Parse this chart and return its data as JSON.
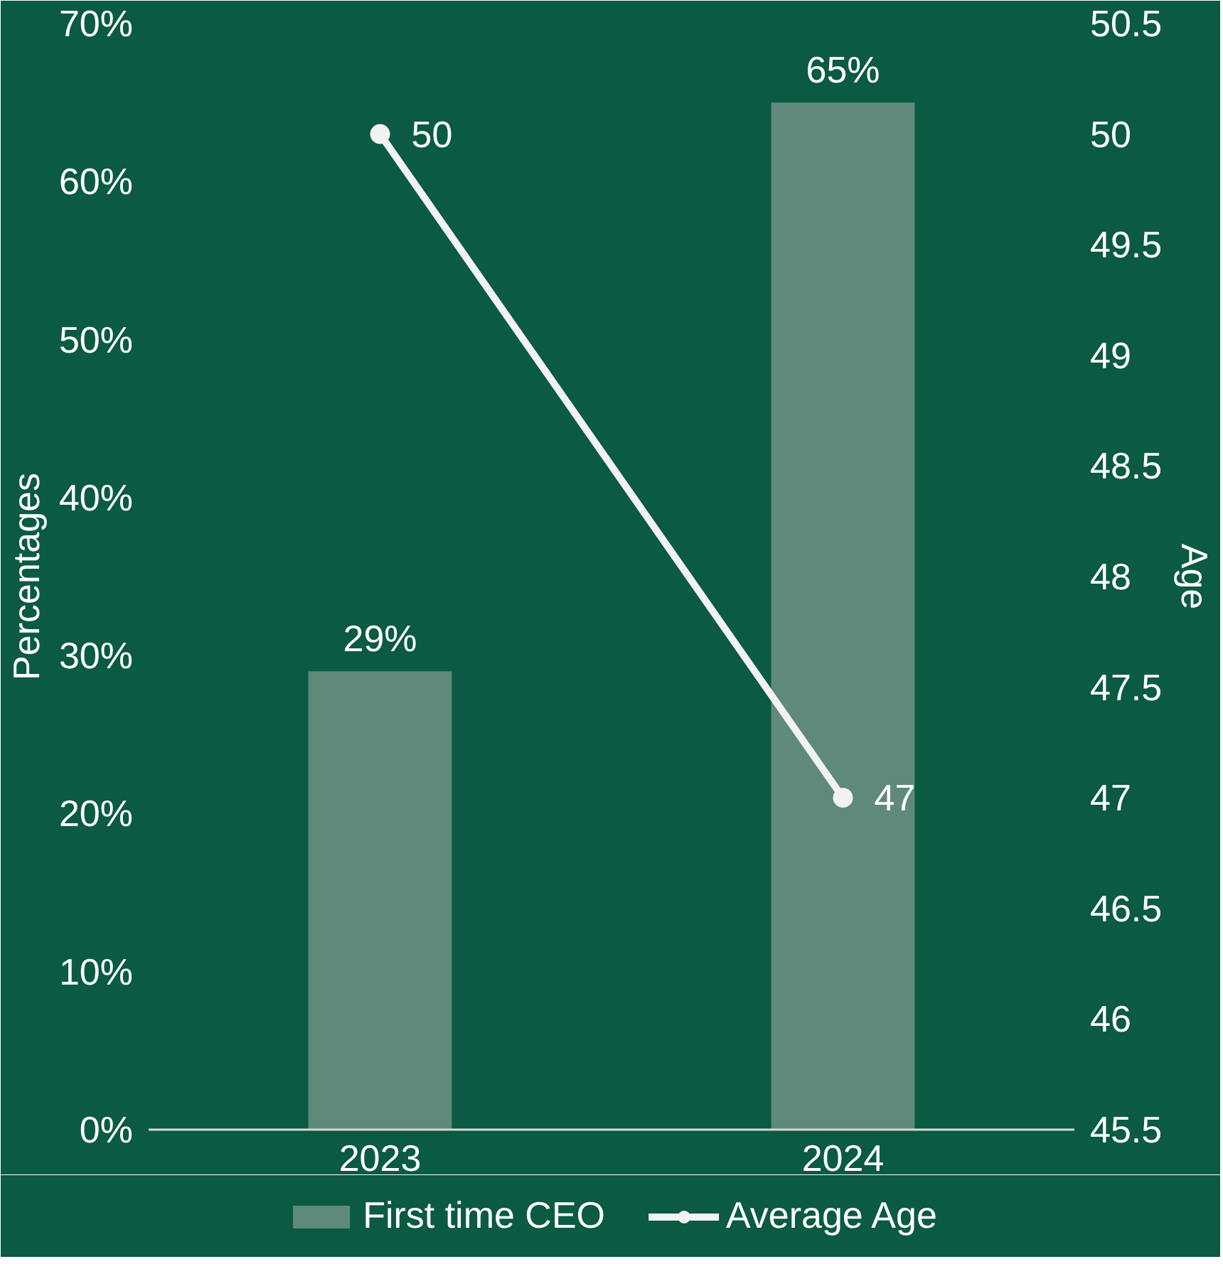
{
  "chart_data": {
    "type": "bar",
    "categories": [
      "2023",
      "2024"
    ],
    "ylabel": "Percentages",
    "y2label": "Age",
    "series": [
      {
        "name": "First time CEO",
        "color": "#5f8a7b",
        "values": [
          29,
          65
        ],
        "value_labels": [
          "29%",
          "65%"
        ]
      },
      {
        "name": "Average Age",
        "type": "line",
        "axis": "y2",
        "color": "#f2f2f2",
        "values": [
          50,
          47
        ],
        "value_labels": [
          "50",
          "47"
        ],
        "marker": "circle",
        "line_style": "solid"
      }
    ],
    "ylim": [
      0,
      70
    ],
    "yticks": [
      {
        "value": 0,
        "label": "0%"
      },
      {
        "value": 10,
        "label": "10%"
      },
      {
        "value": 20,
        "label": "20%"
      },
      {
        "value": 30,
        "label": "30%"
      },
      {
        "value": 40,
        "label": "40%"
      },
      {
        "value": 50,
        "label": "50%"
      },
      {
        "value": 60,
        "label": "60%"
      },
      {
        "value": 70,
        "label": "70%"
      }
    ],
    "y2lim": [
      45.5,
      50.5
    ],
    "y2ticks": [
      45.5,
      46,
      46.5,
      47,
      47.5,
      48,
      48.5,
      49,
      49.5,
      50,
      50.5
    ],
    "grid": false,
    "legend": "bottom"
  }
}
